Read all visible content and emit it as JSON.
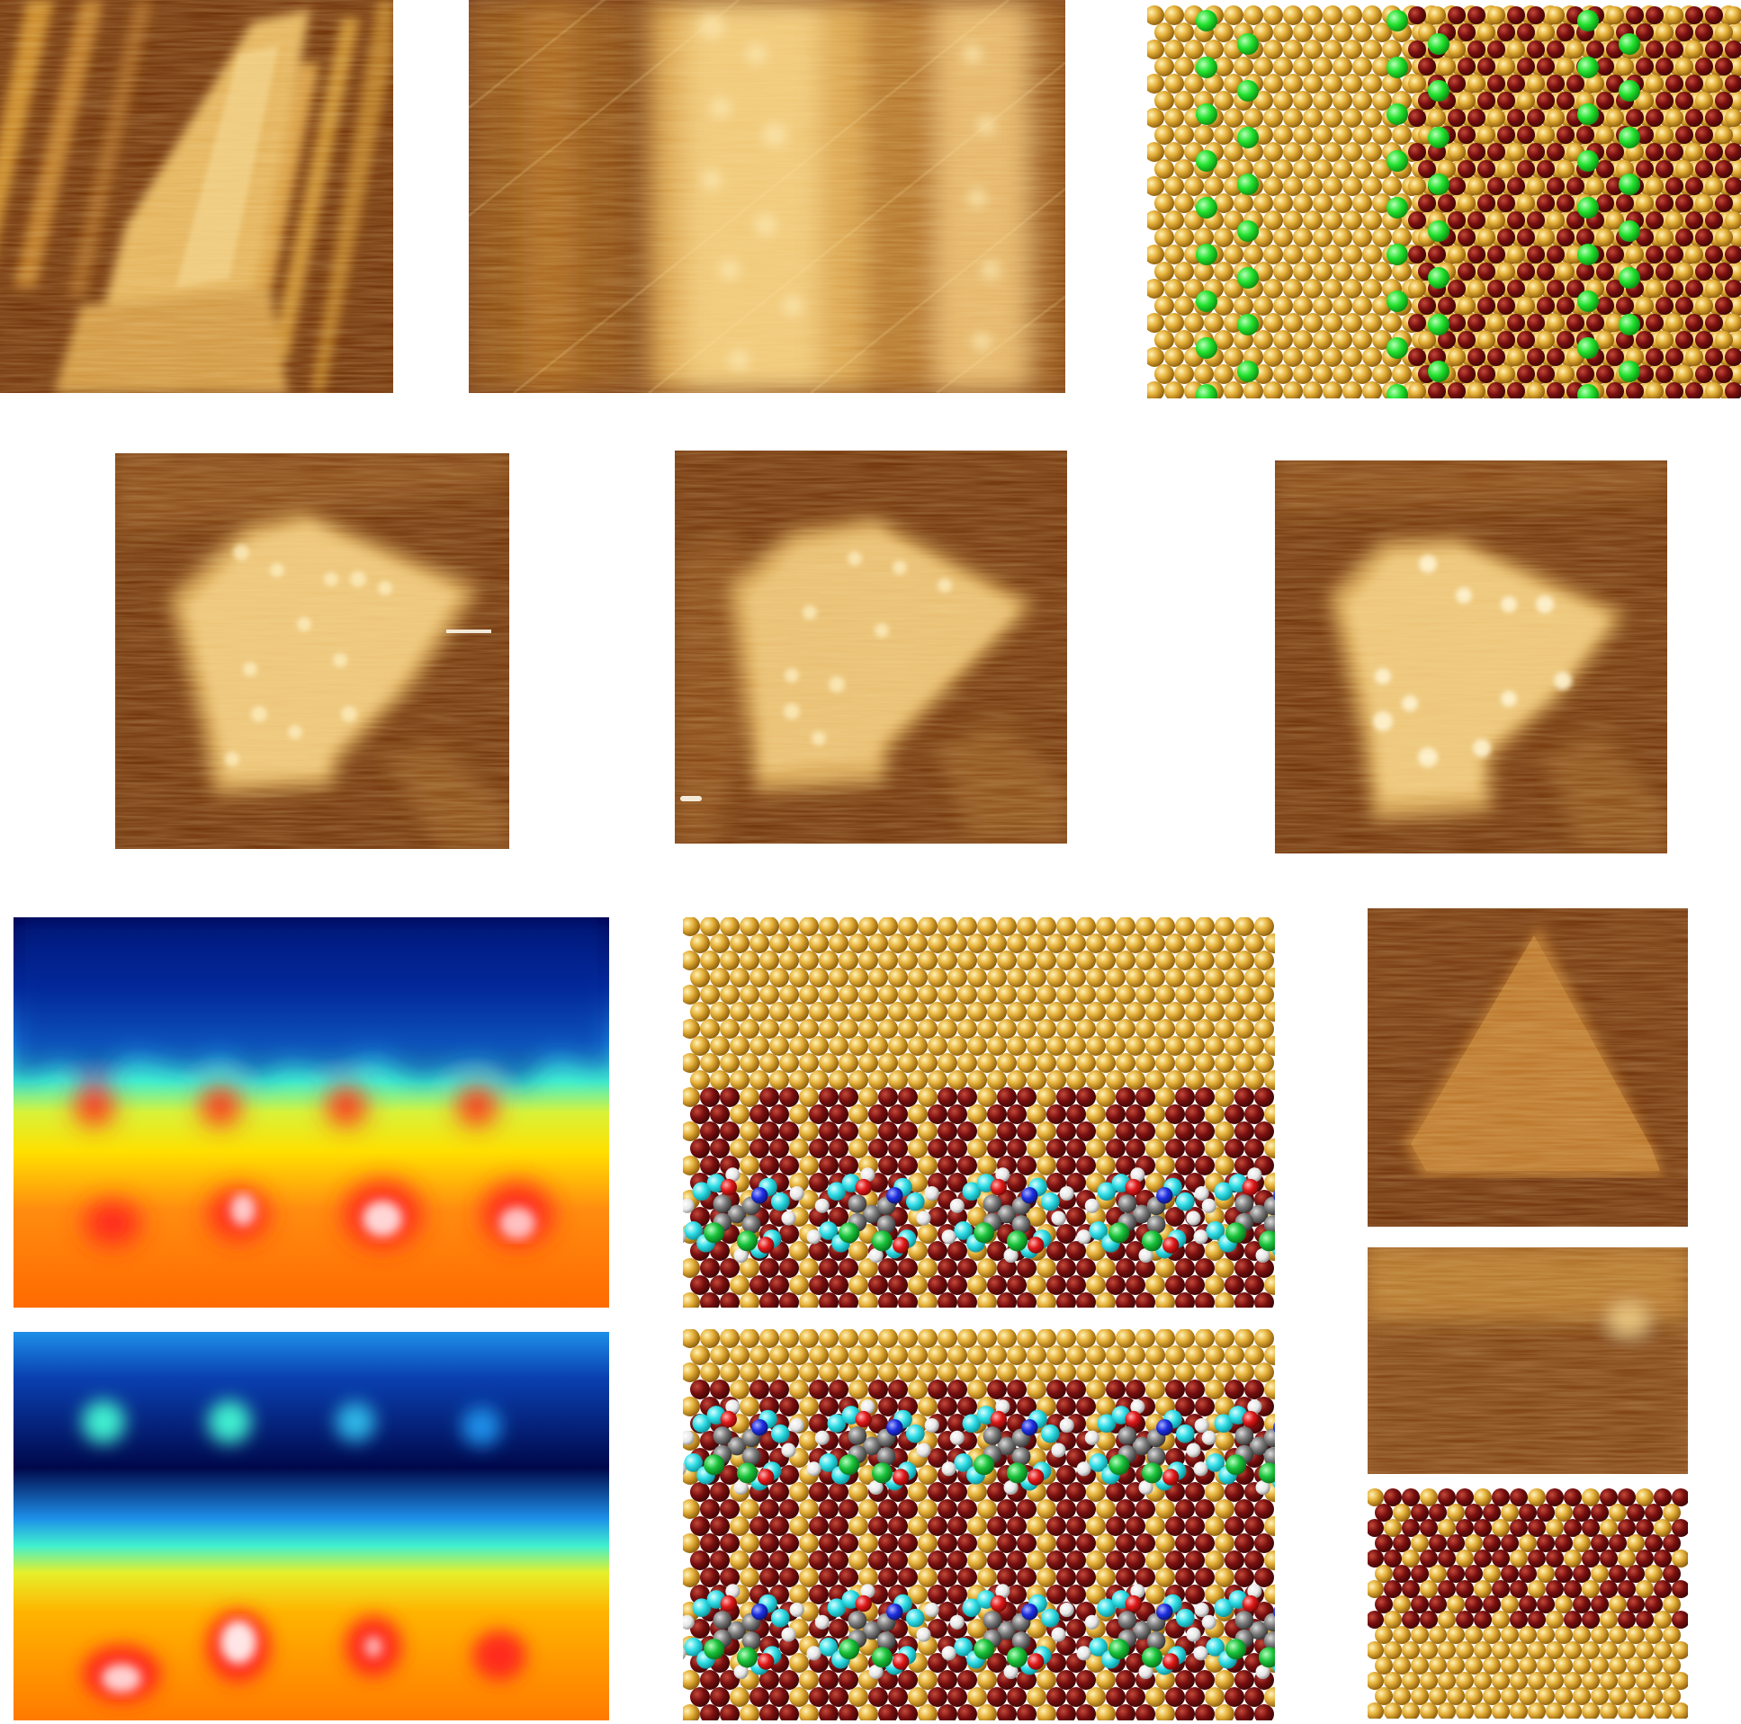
{
  "figure": {
    "panels": [
      {
        "id": "stm-stripes",
        "kind": "stm-image",
        "description": "stm-topography-stripes"
      },
      {
        "id": "stm-zoom",
        "kind": "stm-image",
        "description": "stm-topography-zoom"
      },
      {
        "id": "model-green",
        "kind": "atomic-model",
        "description": "atomic-model-with-green-markers"
      },
      {
        "id": "island-1",
        "kind": "stm-image",
        "description": "stm-island"
      },
      {
        "id": "island-2",
        "kind": "stm-image",
        "description": "stm-island"
      },
      {
        "id": "island-3",
        "kind": "stm-image",
        "description": "stm-island"
      },
      {
        "id": "heatmap-top",
        "kind": "heatmap",
        "description": "rainbow-height-map"
      },
      {
        "id": "heatmap-bottom",
        "kind": "heatmap",
        "description": "rainbow-height-map"
      },
      {
        "id": "model-mol-1",
        "kind": "atomic-model",
        "description": "molecular-adsorption-model"
      },
      {
        "id": "model-mol-2",
        "kind": "atomic-model",
        "description": "molecular-adsorption-model"
      },
      {
        "id": "stm-triangle",
        "kind": "stm-image",
        "description": "stm-triangle-island"
      },
      {
        "id": "stm-edge",
        "kind": "stm-image",
        "description": "stm-island-edge"
      },
      {
        "id": "model-edge",
        "kind": "atomic-model",
        "description": "edge-atomic-model"
      }
    ],
    "colors": {
      "stm_dark": "#5a1f00",
      "stm_mid": "#b8741a",
      "stm_light": "#f6e6b0",
      "atom_gold": "#e6b13a",
      "atom_maroon": "#7a0f0f",
      "marker_green": "#22e22e",
      "mol_cyan": "#2fdde6",
      "mol_grey": "#7c7c7c",
      "mol_white": "#f2f2f2",
      "mol_red": "#e01a1a",
      "mol_blue": "#1d2fe0",
      "mol_green": "#19c23a"
    }
  }
}
